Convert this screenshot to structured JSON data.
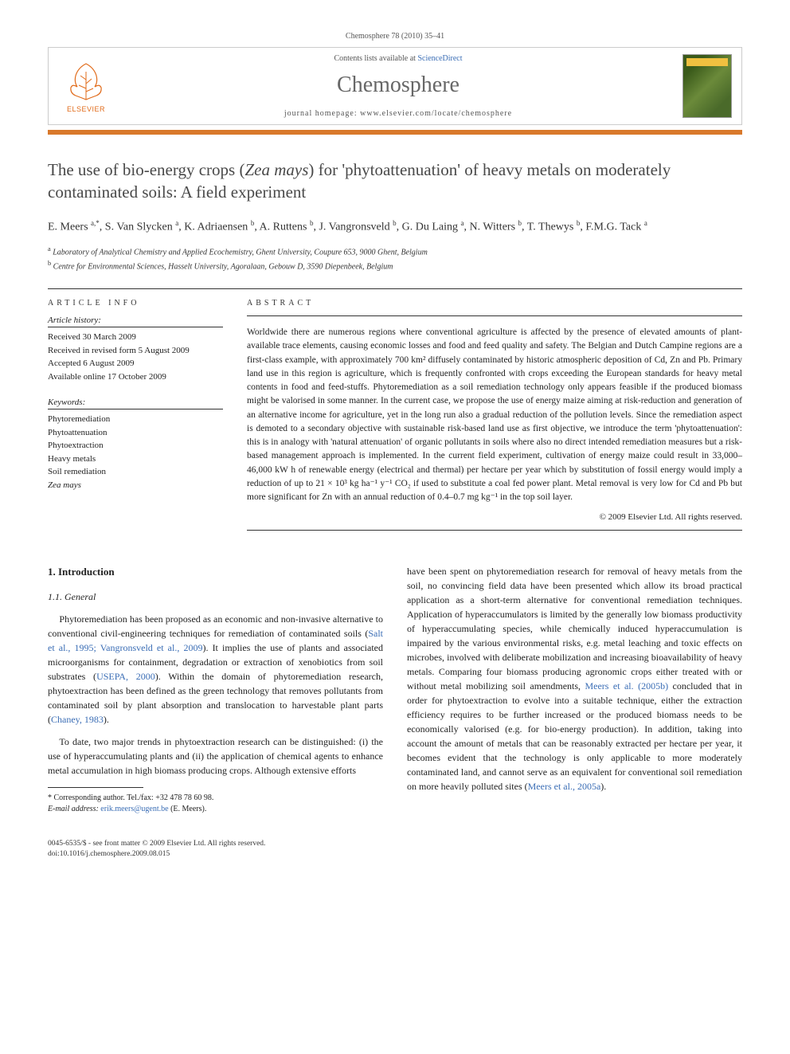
{
  "header": {
    "citation": "Chemosphere 78 (2010) 35–41",
    "contents_prefix": "Contents lists available at ",
    "contents_link": "ScienceDirect",
    "journal_name": "Chemosphere",
    "homepage_prefix": "journal homepage: ",
    "homepage_url": "www.elsevier.com/locate/chemosphere",
    "publisher": "ELSEVIER"
  },
  "title": {
    "part1": "The use of bio-energy crops (",
    "italic": "Zea mays",
    "part2": ") for 'phytoattenuation' of heavy metals on moderately contaminated soils: A field experiment"
  },
  "authors_html": "E. Meers <sup>a,*</sup>, S. Van Slycken <sup>a</sup>, K. Adriaensen <sup>b</sup>, A. Ruttens <sup>b</sup>, J. Vangronsveld <sup>b</sup>, G. Du Laing <sup>a</sup>, N. Witters <sup>b</sup>, T. Thewys <sup>b</sup>, F.M.G. Tack <sup>a</sup>",
  "affiliations": [
    {
      "sup": "a",
      "text": "Laboratory of Analytical Chemistry and Applied Ecochemistry, Ghent University, Coupure 653, 9000 Ghent, Belgium"
    },
    {
      "sup": "b",
      "text": "Centre for Environmental Sciences, Hasselt University, Agoralaan, Gebouw D, 3590 Diepenbeek, Belgium"
    }
  ],
  "article_info": {
    "label": "ARTICLE INFO",
    "history_heading": "Article history:",
    "history": [
      "Received 30 March 2009",
      "Received in revised form 5 August 2009",
      "Accepted 6 August 2009",
      "Available online 17 October 2009"
    ],
    "keywords_heading": "Keywords:",
    "keywords": [
      "Phytoremediation",
      "Phytoattenuation",
      "Phytoextraction",
      "Heavy metals",
      "Soil remediation",
      "Zea mays"
    ]
  },
  "abstract": {
    "label": "ABSTRACT",
    "text": "Worldwide there are numerous regions where conventional agriculture is affected by the presence of elevated amounts of plant-available trace elements, causing economic losses and food and feed quality and safety. The Belgian and Dutch Campine regions are a first-class example, with approximately 700 km² diffusely contaminated by historic atmospheric deposition of Cd, Zn and Pb. Primary land use in this region is agriculture, which is frequently confronted with crops exceeding the European standards for heavy metal contents in food and feed-stuffs. Phytoremediation as a soil remediation technology only appears feasible if the produced biomass might be valorised in some manner. In the current case, we propose the use of energy maize aiming at risk-reduction and generation of an alternative income for agriculture, yet in the long run also a gradual reduction of the pollution levels. Since the remediation aspect is demoted to a secondary objective with sustainable risk-based land use as first objective, we introduce the term 'phytoattenuation': this is in analogy with 'natural attenuation' of organic pollutants in soils where also no direct intended remediation measures but a risk-based management approach is implemented. In the current field experiment, cultivation of energy maize could result in 33,000–46,000 kW h of renewable energy (electrical and thermal) per hectare per year which by substitution of fossil energy would imply a reduction of up to 21 × 10³ kg ha⁻¹ y⁻¹ CO₂ if used to substitute a coal fed power plant. Metal removal is very low for Cd and Pb but more significant for Zn with an annual reduction of 0.4–0.7 mg kg⁻¹ in the top soil layer.",
    "copyright": "© 2009 Elsevier Ltd. All rights reserved."
  },
  "body": {
    "section_number": "1.",
    "section_title": "Introduction",
    "subsection_number": "1.1.",
    "subsection_title": "General",
    "para1_pre": "Phytoremediation has been proposed as an economic and non-invasive alternative to conventional civil-engineering techniques for remediation of contaminated soils (",
    "para1_cite1": "Salt et al., 1995; Vangronsveld et al., 2009",
    "para1_mid": "). It implies the use of plants and associated microorganisms for containment, degradation or extraction of xenobiotics from soil substrates (",
    "para1_cite2": "USEPA, 2000",
    "para1_mid2": "). Within the domain of phytoremediation research, phytoextraction has been defined as the green technology that removes pollutants from contaminated soil by plant absorption and translocation to harvestable plant parts (",
    "para1_cite3": "Chaney, 1983",
    "para1_end": ").",
    "para2": "To date, two major trends in phytoextraction research can be distinguished: (i) the use of hyperaccumulating plants and (ii) the application of chemical agents to enhance metal accumulation in high biomass producing crops. Although extensive efforts",
    "para3_pre": "have been spent on phytoremediation research for removal of heavy metals from the soil, no convincing field data have been presented which allow its broad practical application as a short-term alternative for conventional remediation techniques. Application of hyperaccumulators is limited by the generally low biomass productivity of hyperaccumulating species, while chemically induced hyperaccumulation is impaired by the various environmental risks, e.g. metal leaching and toxic effects on microbes, involved with deliberate mobilization and increasing bioavailability of heavy metals. Comparing four biomass producing agronomic crops either treated with or without metal mobilizing soil amendments, ",
    "para3_cite1": "Meers et al. (2005b)",
    "para3_mid": " concluded that in order for phytoextraction to evolve into a suitable technique, either the extraction efficiency requires to be further increased or the produced biomass needs to be economically valorised (e.g. for bio-energy production). In addition, taking into account the amount of metals that can be reasonably extracted per hectare per year, it becomes evident that the technology is only applicable to more moderately contaminated land, and cannot serve as an equivalent for conventional soil remediation on more heavily polluted sites (",
    "para3_cite2": "Meers et al., 2005a",
    "para3_end": ")."
  },
  "footnote": {
    "corresponding": "* Corresponding author. Tel./fax: +32 478 78 60 98.",
    "email_label": "E-mail address:",
    "email": "erik.meers@ugent.be",
    "email_suffix": "(E. Meers)."
  },
  "footer": {
    "line1": "0045-6535/$ - see front matter © 2009 Elsevier Ltd. All rights reserved.",
    "line2": "doi:10.1016/j.chemosphere.2009.08.015"
  },
  "colors": {
    "orange_bar": "#d9792b",
    "link": "#3a6db5",
    "title_gray": "#494949",
    "journal_gray": "#676767"
  }
}
